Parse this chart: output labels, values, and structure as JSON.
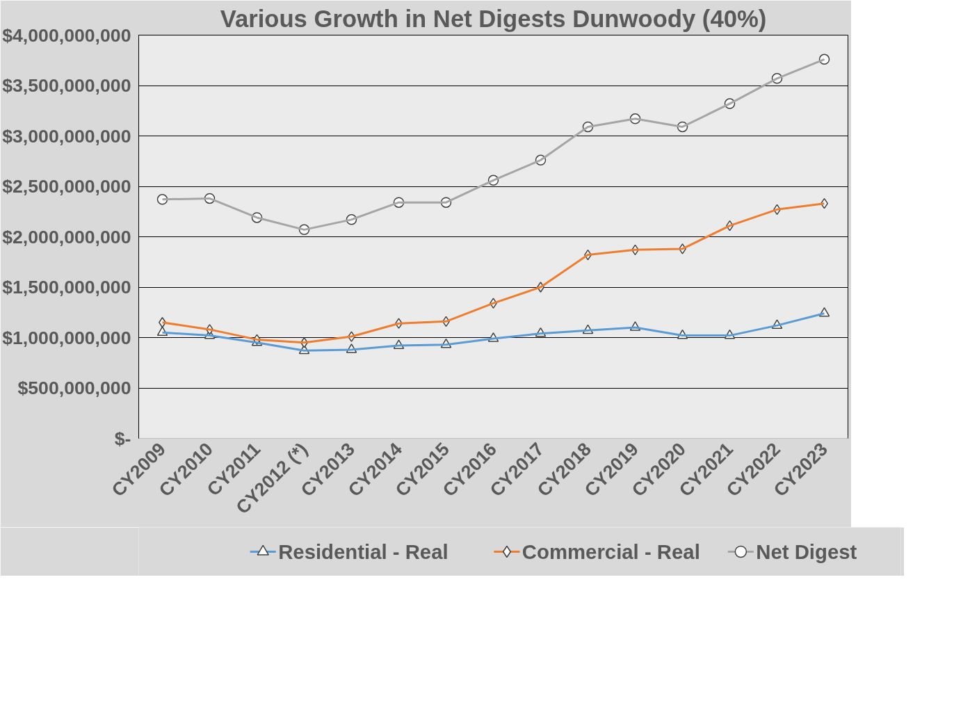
{
  "chart_data": {
    "type": "line",
    "title": "Various Growth in Net Digests Dunwoody (40%)",
    "categories": [
      "CY2009",
      "CY2010",
      "CY2011",
      "CY2012 (*)",
      "CY2013",
      "CY2014",
      "CY2015",
      "CY2016",
      "CY2017",
      "CY2018",
      "CY2019",
      "CY2020",
      "CY2021",
      "CY2022",
      "CY2023"
    ],
    "series": [
      {
        "name": "Residential - Real",
        "color": "#5b9bd5",
        "marker": "triangle",
        "values": [
          1050000000,
          1020000000,
          950000000,
          870000000,
          880000000,
          920000000,
          930000000,
          990000000,
          1040000000,
          1070000000,
          1100000000,
          1020000000,
          1020000000,
          1120000000,
          1240000000
        ]
      },
      {
        "name": "Commercial - Real",
        "color": "#ed7d31",
        "marker": "diamond",
        "values": [
          1150000000,
          1080000000,
          980000000,
          950000000,
          1010000000,
          1140000000,
          1160000000,
          1340000000,
          1500000000,
          1820000000,
          1870000000,
          1880000000,
          2110000000,
          2270000000,
          2330000000
        ]
      },
      {
        "name": "Net Digest",
        "color": "#a5a5a5",
        "marker": "circle",
        "values": [
          2370000000,
          2380000000,
          2190000000,
          2070000000,
          2170000000,
          2340000000,
          2340000000,
          2560000000,
          2760000000,
          3090000000,
          3170000000,
          3090000000,
          3320000000,
          3570000000,
          3760000000
        ]
      }
    ],
    "ylim": [
      0,
      4000000000
    ],
    "yticks": [
      {
        "value": 0,
        "label": "$-"
      },
      {
        "value": 500000000,
        "label": "$500,000,000"
      },
      {
        "value": 1000000000,
        "label": "$1,000,000,000"
      },
      {
        "value": 1500000000,
        "label": "$1,500,000,000"
      },
      {
        "value": 2000000000,
        "label": "$2,000,000,000"
      },
      {
        "value": 2500000000,
        "label": "$2,500,000,000"
      },
      {
        "value": 3000000000,
        "label": "$3,000,000,000"
      },
      {
        "value": 3500000000,
        "label": "$3,500,000,000"
      },
      {
        "value": 4000000000,
        "label": "$4,000,000,000"
      }
    ],
    "grid": "y",
    "legend": "bottom",
    "line_style": "solid"
  }
}
